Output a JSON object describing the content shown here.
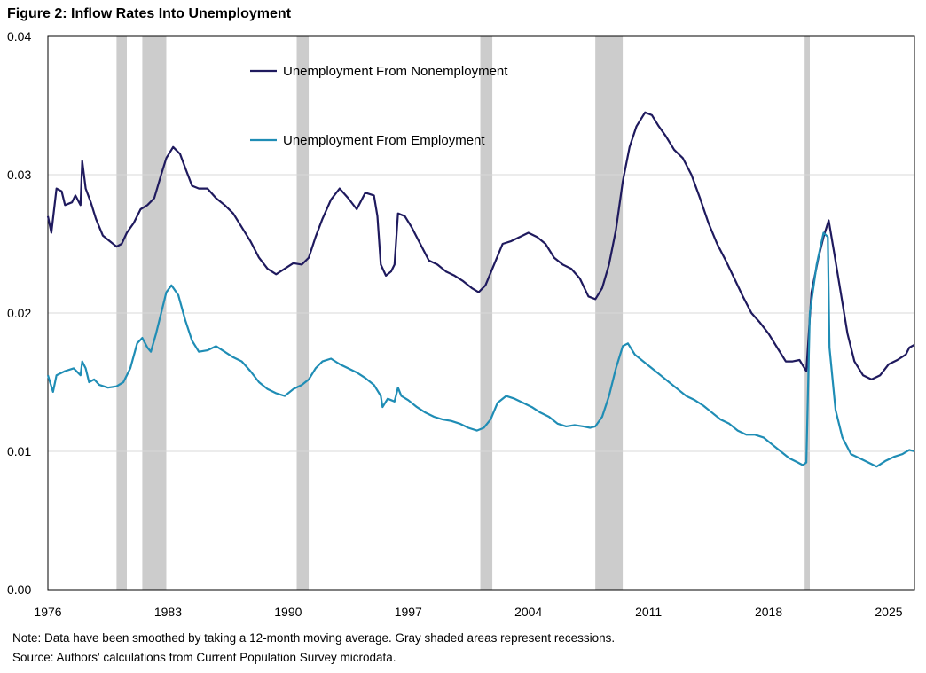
{
  "header": {
    "title": "Figure 2: Inflow Rates Into Unemployment"
  },
  "notes": {
    "note": "Note: Data have been smoothed by taking a 12-month moving average. Gray shaded areas represent recessions.",
    "source": "Source: Authors' calculations from Current Population Survey microdata."
  },
  "colors": {
    "nonemployment": "#1f1a5e",
    "employment": "#1f8db5",
    "recession": "#cccccc",
    "grid": "#d9d9d9"
  },
  "chart_data": {
    "type": "line",
    "title": "Figure 2: Inflow Rates Into Unemployment",
    "xlabel": "",
    "ylabel": "",
    "xlim": [
      1976,
      2026.5
    ],
    "ylim": [
      0,
      0.04
    ],
    "x_ticks": [
      1976,
      1983,
      1990,
      1997,
      2004,
      2011,
      2018,
      2025
    ],
    "x_tick_labels": [
      "1976",
      "1983",
      "1990",
      "1997",
      "2004",
      "2011",
      "2018",
      "2025"
    ],
    "y_ticks": [
      0,
      0.01,
      0.02,
      0.03,
      0.04
    ],
    "y_tick_labels": [
      "0.00",
      "0.01",
      "0.02",
      "0.03",
      "0.04"
    ],
    "grid": "horizontal",
    "legend_position": "top-left-inside",
    "recessions": [
      [
        1980.0,
        1980.6
      ],
      [
        1981.5,
        1982.9
      ],
      [
        1990.5,
        1991.2
      ],
      [
        2001.2,
        2001.9
      ],
      [
        2007.9,
        2009.5
      ],
      [
        2020.1,
        2020.4
      ]
    ],
    "series": [
      {
        "name": "Unemployment From Nonemployment",
        "points": [
          [
            1976.0,
            0.027
          ],
          [
            1976.2,
            0.0258
          ],
          [
            1976.5,
            0.029
          ],
          [
            1976.8,
            0.0288
          ],
          [
            1977.0,
            0.0278
          ],
          [
            1977.4,
            0.028
          ],
          [
            1977.6,
            0.0285
          ],
          [
            1977.9,
            0.0278
          ],
          [
            1978.0,
            0.031
          ],
          [
            1978.2,
            0.029
          ],
          [
            1978.5,
            0.028
          ],
          [
            1978.8,
            0.0268
          ],
          [
            1979.2,
            0.0256
          ],
          [
            1979.6,
            0.0252
          ],
          [
            1980.0,
            0.0248
          ],
          [
            1980.3,
            0.025
          ],
          [
            1980.6,
            0.0258
          ],
          [
            1981.0,
            0.0265
          ],
          [
            1981.4,
            0.0275
          ],
          [
            1981.8,
            0.0278
          ],
          [
            1982.2,
            0.0283
          ],
          [
            1982.6,
            0.03
          ],
          [
            1982.9,
            0.0312
          ],
          [
            1983.3,
            0.032
          ],
          [
            1983.7,
            0.0315
          ],
          [
            1984.0,
            0.0305
          ],
          [
            1984.4,
            0.0292
          ],
          [
            1984.8,
            0.029
          ],
          [
            1985.3,
            0.029
          ],
          [
            1985.8,
            0.0283
          ],
          [
            1986.3,
            0.0278
          ],
          [
            1986.8,
            0.0272
          ],
          [
            1987.3,
            0.0262
          ],
          [
            1987.8,
            0.0252
          ],
          [
            1988.3,
            0.024
          ],
          [
            1988.8,
            0.0232
          ],
          [
            1989.3,
            0.0228
          ],
          [
            1989.8,
            0.0232
          ],
          [
            1990.3,
            0.0236
          ],
          [
            1990.8,
            0.0235
          ],
          [
            1991.2,
            0.024
          ],
          [
            1991.6,
            0.0255
          ],
          [
            1992.0,
            0.0268
          ],
          [
            1992.5,
            0.0282
          ],
          [
            1993.0,
            0.029
          ],
          [
            1993.5,
            0.0283
          ],
          [
            1994.0,
            0.0275
          ],
          [
            1994.5,
            0.0287
          ],
          [
            1995.0,
            0.0285
          ],
          [
            1995.2,
            0.027
          ],
          [
            1995.4,
            0.0235
          ],
          [
            1995.7,
            0.0227
          ],
          [
            1996.0,
            0.023
          ],
          [
            1996.2,
            0.0235
          ],
          [
            1996.4,
            0.0272
          ],
          [
            1996.8,
            0.027
          ],
          [
            1997.2,
            0.0262
          ],
          [
            1997.7,
            0.025
          ],
          [
            1998.2,
            0.0238
          ],
          [
            1998.7,
            0.0235
          ],
          [
            1999.2,
            0.023
          ],
          [
            1999.7,
            0.0227
          ],
          [
            2000.2,
            0.0223
          ],
          [
            2000.7,
            0.0218
          ],
          [
            2001.1,
            0.0215
          ],
          [
            2001.5,
            0.022
          ],
          [
            2002.0,
            0.0235
          ],
          [
            2002.5,
            0.025
          ],
          [
            2003.0,
            0.0252
          ],
          [
            2003.5,
            0.0255
          ],
          [
            2004.0,
            0.0258
          ],
          [
            2004.5,
            0.0255
          ],
          [
            2005.0,
            0.025
          ],
          [
            2005.5,
            0.024
          ],
          [
            2006.0,
            0.0235
          ],
          [
            2006.5,
            0.0232
          ],
          [
            2007.0,
            0.0225
          ],
          [
            2007.5,
            0.0212
          ],
          [
            2007.9,
            0.021
          ],
          [
            2008.3,
            0.0218
          ],
          [
            2008.7,
            0.0235
          ],
          [
            2009.1,
            0.026
          ],
          [
            2009.5,
            0.0295
          ],
          [
            2009.9,
            0.032
          ],
          [
            2010.3,
            0.0335
          ],
          [
            2010.8,
            0.0345
          ],
          [
            2011.2,
            0.0343
          ],
          [
            2011.6,
            0.0335
          ],
          [
            2012.0,
            0.0328
          ],
          [
            2012.5,
            0.0318
          ],
          [
            2013.0,
            0.0312
          ],
          [
            2013.5,
            0.03
          ],
          [
            2014.0,
            0.0283
          ],
          [
            2014.5,
            0.0265
          ],
          [
            2015.0,
            0.025
          ],
          [
            2015.5,
            0.0238
          ],
          [
            2016.0,
            0.0225
          ],
          [
            2016.5,
            0.0212
          ],
          [
            2017.0,
            0.02
          ],
          [
            2017.5,
            0.0193
          ],
          [
            2018.0,
            0.0185
          ],
          [
            2018.5,
            0.0175
          ],
          [
            2019.0,
            0.0165
          ],
          [
            2019.4,
            0.0165
          ],
          [
            2019.8,
            0.0166
          ],
          [
            2020.0,
            0.0162
          ],
          [
            2020.2,
            0.0158
          ],
          [
            2020.5,
            0.0215
          ],
          [
            2020.9,
            0.024
          ],
          [
            2021.2,
            0.0255
          ],
          [
            2021.5,
            0.0267
          ],
          [
            2021.8,
            0.0245
          ],
          [
            2022.2,
            0.0215
          ],
          [
            2022.6,
            0.0185
          ],
          [
            2023.0,
            0.0165
          ],
          [
            2023.5,
            0.0155
          ],
          [
            2024.0,
            0.0152
          ],
          [
            2024.5,
            0.0155
          ],
          [
            2025.0,
            0.0163
          ],
          [
            2025.5,
            0.0166
          ],
          [
            2026.0,
            0.017
          ],
          [
            2026.2,
            0.0175
          ],
          [
            2026.5,
            0.0177
          ]
        ]
      },
      {
        "name": "Unemployment From Employment",
        "points": [
          [
            1976.0,
            0.0155
          ],
          [
            1976.3,
            0.0143
          ],
          [
            1976.5,
            0.0155
          ],
          [
            1977.0,
            0.0158
          ],
          [
            1977.5,
            0.016
          ],
          [
            1977.9,
            0.0155
          ],
          [
            1978.0,
            0.0165
          ],
          [
            1978.2,
            0.016
          ],
          [
            1978.4,
            0.015
          ],
          [
            1978.7,
            0.0152
          ],
          [
            1979.0,
            0.0148
          ],
          [
            1979.5,
            0.0146
          ],
          [
            1980.0,
            0.0147
          ],
          [
            1980.4,
            0.015
          ],
          [
            1980.8,
            0.016
          ],
          [
            1981.2,
            0.0178
          ],
          [
            1981.5,
            0.0182
          ],
          [
            1981.8,
            0.0175
          ],
          [
            1982.0,
            0.0172
          ],
          [
            1982.3,
            0.0185
          ],
          [
            1982.6,
            0.02
          ],
          [
            1982.9,
            0.0215
          ],
          [
            1983.2,
            0.022
          ],
          [
            1983.6,
            0.0213
          ],
          [
            1984.0,
            0.0195
          ],
          [
            1984.4,
            0.018
          ],
          [
            1984.8,
            0.0172
          ],
          [
            1985.3,
            0.0173
          ],
          [
            1985.8,
            0.0176
          ],
          [
            1986.3,
            0.0172
          ],
          [
            1986.8,
            0.0168
          ],
          [
            1987.3,
            0.0165
          ],
          [
            1987.8,
            0.0158
          ],
          [
            1988.3,
            0.015
          ],
          [
            1988.8,
            0.0145
          ],
          [
            1989.3,
            0.0142
          ],
          [
            1989.8,
            0.014
          ],
          [
            1990.3,
            0.0145
          ],
          [
            1990.8,
            0.0148
          ],
          [
            1991.2,
            0.0152
          ],
          [
            1991.6,
            0.016
          ],
          [
            1992.0,
            0.0165
          ],
          [
            1992.5,
            0.0167
          ],
          [
            1993.0,
            0.0163
          ],
          [
            1993.5,
            0.016
          ],
          [
            1994.0,
            0.0157
          ],
          [
            1994.5,
            0.0153
          ],
          [
            1995.0,
            0.0148
          ],
          [
            1995.4,
            0.014
          ],
          [
            1995.5,
            0.0132
          ],
          [
            1995.8,
            0.0138
          ],
          [
            1996.2,
            0.0136
          ],
          [
            1996.4,
            0.0146
          ],
          [
            1996.6,
            0.014
          ],
          [
            1997.0,
            0.0137
          ],
          [
            1997.5,
            0.0132
          ],
          [
            1998.0,
            0.0128
          ],
          [
            1998.5,
            0.0125
          ],
          [
            1999.0,
            0.0123
          ],
          [
            1999.5,
            0.0122
          ],
          [
            2000.0,
            0.012
          ],
          [
            2000.5,
            0.0117
          ],
          [
            2001.0,
            0.0115
          ],
          [
            2001.4,
            0.0117
          ],
          [
            2001.8,
            0.0123
          ],
          [
            2002.2,
            0.0135
          ],
          [
            2002.7,
            0.014
          ],
          [
            2003.2,
            0.0138
          ],
          [
            2003.7,
            0.0135
          ],
          [
            2004.2,
            0.0132
          ],
          [
            2004.7,
            0.0128
          ],
          [
            2005.2,
            0.0125
          ],
          [
            2005.7,
            0.012
          ],
          [
            2006.2,
            0.0118
          ],
          [
            2006.7,
            0.0119
          ],
          [
            2007.2,
            0.0118
          ],
          [
            2007.6,
            0.0117
          ],
          [
            2007.9,
            0.0118
          ],
          [
            2008.3,
            0.0125
          ],
          [
            2008.7,
            0.014
          ],
          [
            2009.1,
            0.016
          ],
          [
            2009.5,
            0.0176
          ],
          [
            2009.8,
            0.0178
          ],
          [
            2010.2,
            0.017
          ],
          [
            2010.7,
            0.0165
          ],
          [
            2011.2,
            0.016
          ],
          [
            2011.7,
            0.0155
          ],
          [
            2012.2,
            0.015
          ],
          [
            2012.7,
            0.0145
          ],
          [
            2013.2,
            0.014
          ],
          [
            2013.7,
            0.0137
          ],
          [
            2014.2,
            0.0133
          ],
          [
            2014.7,
            0.0128
          ],
          [
            2015.2,
            0.0123
          ],
          [
            2015.7,
            0.012
          ],
          [
            2016.2,
            0.0115
          ],
          [
            2016.7,
            0.0112
          ],
          [
            2017.2,
            0.0112
          ],
          [
            2017.7,
            0.011
          ],
          [
            2018.2,
            0.0105
          ],
          [
            2018.7,
            0.01
          ],
          [
            2019.2,
            0.0095
          ],
          [
            2019.7,
            0.0092
          ],
          [
            2020.0,
            0.009
          ],
          [
            2020.2,
            0.0092
          ],
          [
            2020.4,
            0.02
          ],
          [
            2020.8,
            0.0235
          ],
          [
            2021.2,
            0.0258
          ],
          [
            2021.45,
            0.0255
          ],
          [
            2021.55,
            0.0175
          ],
          [
            2021.9,
            0.013
          ],
          [
            2022.3,
            0.011
          ],
          [
            2022.8,
            0.0098
          ],
          [
            2023.3,
            0.0095
          ],
          [
            2023.8,
            0.0092
          ],
          [
            2024.3,
            0.0089
          ],
          [
            2024.8,
            0.0093
          ],
          [
            2025.3,
            0.0096
          ],
          [
            2025.8,
            0.0098
          ],
          [
            2026.2,
            0.0101
          ],
          [
            2026.5,
            0.01
          ]
        ]
      }
    ]
  }
}
